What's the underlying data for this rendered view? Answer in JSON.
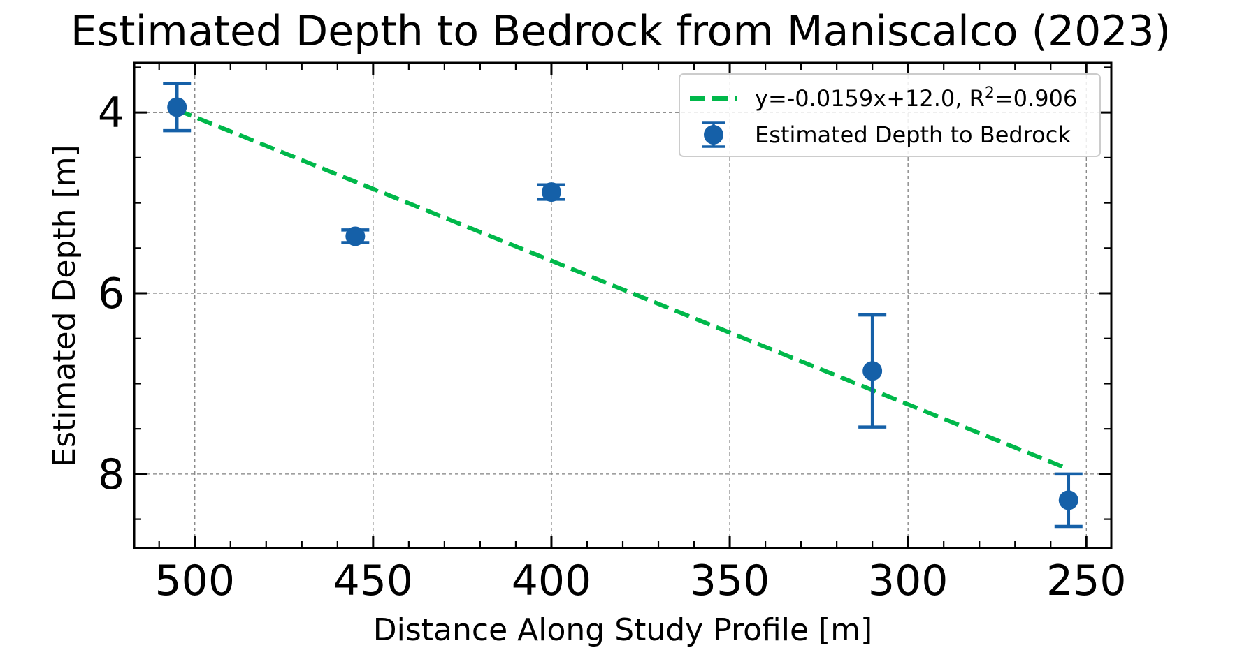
{
  "chart_data": {
    "type": "scatter",
    "title": "Estimated Depth to Bedrock from Maniscalco (2023)",
    "xlabel": "Distance Along Study Profile [m]",
    "ylabel": "Estimated Depth [m]",
    "x_reversed": true,
    "y_reversed": true,
    "xlim": [
      517,
      243
    ],
    "ylim": [
      3.45,
      8.82
    ],
    "xticks": [
      500,
      450,
      400,
      350,
      300,
      250
    ],
    "yticks": [
      4,
      6,
      8
    ],
    "xminor_step": 10,
    "yminor_step": 0.5,
    "grid": true,
    "legend_position": "top-right",
    "series": [
      {
        "name": "Estimated Depth to Bedrock",
        "kind": "errorbar",
        "color": "#1560a8",
        "x": [
          505,
          455,
          400,
          310,
          255
        ],
        "y": [
          3.94,
          5.37,
          4.88,
          6.86,
          8.29
        ],
        "yerr": [
          0.26,
          0.07,
          0.08,
          0.62,
          0.29
        ]
      }
    ],
    "fit": {
      "name_prefix": "y=-0.0159x+12.0, R",
      "name_sup": "2",
      "name_suffix": "=0.906",
      "color": "#00b84a",
      "slope": -0.0159,
      "intercept": 12.0,
      "x_range": [
        505,
        255
      ]
    }
  }
}
